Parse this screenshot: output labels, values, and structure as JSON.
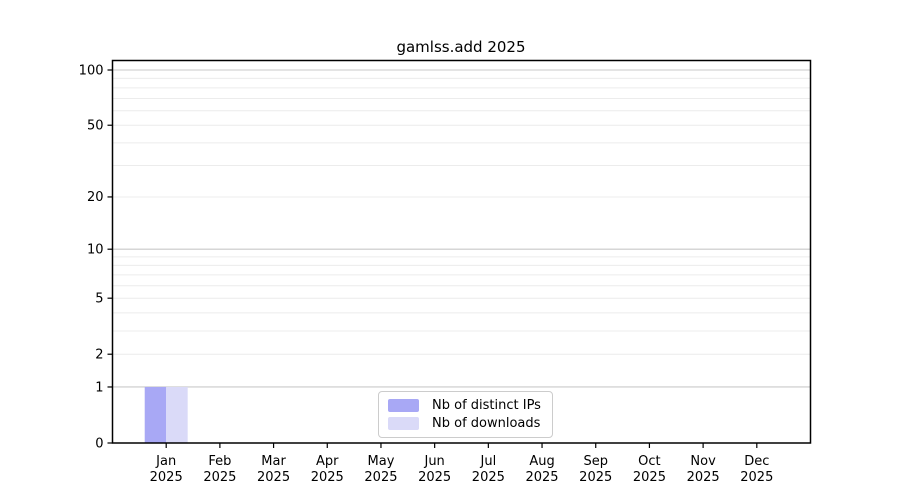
{
  "figure": {
    "background": "#ffffff"
  },
  "chart_data": {
    "type": "bar",
    "title": "gamlss.add 2025",
    "categories": [
      "Jan 2025",
      "Feb 2025",
      "Mar 2025",
      "Apr 2025",
      "May 2025",
      "Jun 2025",
      "Jul 2025",
      "Aug 2025",
      "Sep 2025",
      "Oct 2025",
      "Nov 2025",
      "Dec 2025"
    ],
    "series": [
      {
        "name": "Nb of distinct IPs",
        "color": "#a8a8f5",
        "values": [
          1,
          0,
          0,
          0,
          0,
          0,
          0,
          0,
          0,
          0,
          0,
          0
        ]
      },
      {
        "name": "Nb of downloads",
        "color": "#dadaf8",
        "values": [
          1,
          0,
          0,
          0,
          0,
          0,
          0,
          0,
          0,
          0,
          0,
          0
        ]
      }
    ],
    "yscale": "log1p",
    "ytick_values": [
      0,
      1,
      2,
      5,
      10,
      20,
      50,
      100
    ],
    "ygrid_major": [
      1,
      10,
      100
    ],
    "ygrid_minor": [
      2,
      3,
      4,
      5,
      6,
      7,
      8,
      9,
      20,
      30,
      40,
      50,
      60,
      70,
      80,
      90
    ],
    "ylim": [
      0,
      114
    ],
    "grid": "horizontal",
    "legend_position": "bottom-center"
  },
  "colors": {
    "frame": "#000000",
    "grid_major": "#c9c9c9",
    "grid_minor": "#ececec",
    "legend_border": "#cccccc",
    "text": "#000000"
  }
}
